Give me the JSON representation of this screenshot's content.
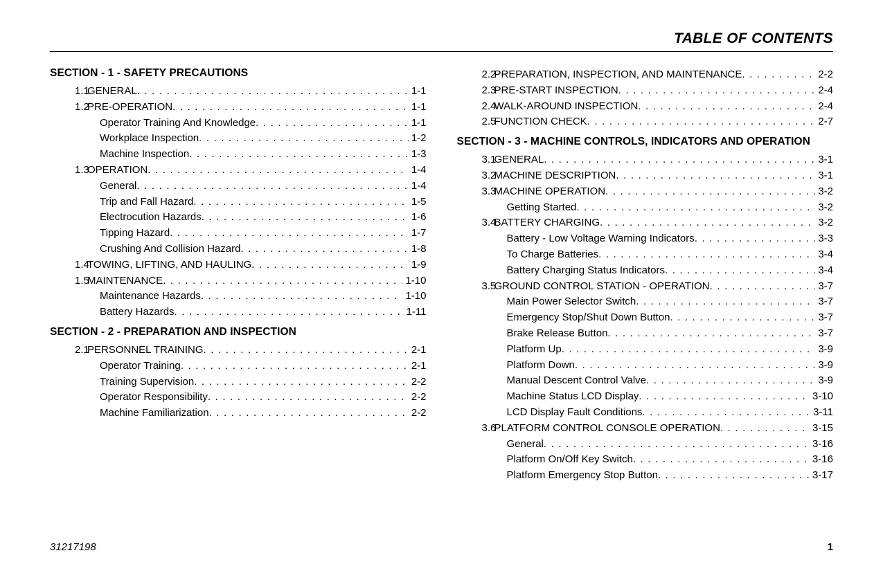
{
  "header": {
    "title": "TABLE OF CONTENTS"
  },
  "footer": {
    "doc_number": "31217198",
    "page_number": "1"
  },
  "left_column": [
    {
      "type": "section",
      "text": "SECTION - 1 - SAFETY PRECAUTIONS"
    },
    {
      "type": "entry",
      "num": "1.1",
      "label": "GENERAL",
      "page": "1-1"
    },
    {
      "type": "entry",
      "num": "1.2",
      "label": "PRE-OPERATION",
      "page": "1-1"
    },
    {
      "type": "sub",
      "label": "Operator Training And Knowledge",
      "page": "1-1"
    },
    {
      "type": "sub",
      "label": "Workplace Inspection",
      "page": "1-2"
    },
    {
      "type": "sub",
      "label": "Machine Inspection",
      "page": "1-3"
    },
    {
      "type": "entry",
      "num": "1.3",
      "label": "OPERATION",
      "page": "1-4"
    },
    {
      "type": "sub",
      "label": "General",
      "page": "1-4"
    },
    {
      "type": "sub",
      "label": "Trip and Fall Hazard",
      "page": "1-5"
    },
    {
      "type": "sub",
      "label": "Electrocution Hazards",
      "page": "1-6"
    },
    {
      "type": "sub",
      "label": "Tipping Hazard",
      "page": "1-7"
    },
    {
      "type": "sub",
      "label": "Crushing And Collision Hazard",
      "page": "1-8"
    },
    {
      "type": "entry",
      "num": "1.4",
      "label": "TOWING, LIFTING, AND HAULING",
      "page": "1-9"
    },
    {
      "type": "entry",
      "num": "1.5",
      "label": "MAINTENANCE",
      "page": "1-10"
    },
    {
      "type": "sub",
      "label": "Maintenance Hazards",
      "page": "1-10"
    },
    {
      "type": "sub",
      "label": "Battery Hazards",
      "page": "1-11"
    },
    {
      "type": "section",
      "text": "SECTION - 2 - PREPARATION AND INSPECTION"
    },
    {
      "type": "entry",
      "num": "2.1",
      "label": "PERSONNEL TRAINING",
      "page": "2-1"
    },
    {
      "type": "sub",
      "label": "Operator Training",
      "page": "2-1"
    },
    {
      "type": "sub",
      "label": "Training Supervision",
      "page": "2-2"
    },
    {
      "type": "sub",
      "label": "Operator Responsibility",
      "page": "2-2"
    },
    {
      "type": "sub",
      "label": "Machine Familiarization",
      "page": "2-2"
    }
  ],
  "right_column": [
    {
      "type": "entry",
      "num": "2.2",
      "label": "PREPARATION, INSPECTION, AND MAINTENANCE",
      "page": "2-2"
    },
    {
      "type": "entry",
      "num": "2.3",
      "label": "PRE-START INSPECTION",
      "page": "2-4"
    },
    {
      "type": "entry",
      "num": "2.4",
      "label": "WALK-AROUND INSPECTION",
      "page": "2-4"
    },
    {
      "type": "entry",
      "num": "2.5",
      "label": "FUNCTION CHECK",
      "page": "2-7"
    },
    {
      "type": "section",
      "text": "SECTION - 3 - MACHINE CONTROLS, INDICATORS AND OPERATION"
    },
    {
      "type": "entry",
      "num": "3.1",
      "label": "GENERAL",
      "page": "3-1"
    },
    {
      "type": "entry",
      "num": "3.2",
      "label": "MACHINE DESCRIPTION",
      "page": "3-1"
    },
    {
      "type": "entry",
      "num": "3.3",
      "label": "MACHINE OPERATION",
      "page": "3-2"
    },
    {
      "type": "sub",
      "label": "Getting Started",
      "page": "3-2"
    },
    {
      "type": "entry",
      "num": "3.4",
      "label": "BATTERY CHARGING",
      "page": "3-2"
    },
    {
      "type": "sub",
      "label": "Battery - Low Voltage Warning Indicators",
      "page": "3-3"
    },
    {
      "type": "sub",
      "label": "To Charge Batteries",
      "page": "3-4"
    },
    {
      "type": "sub",
      "label": "Battery Charging Status Indicators",
      "page": "3-4"
    },
    {
      "type": "entry",
      "num": "3.5",
      "label": "GROUND CONTROL STATION - OPERATION",
      "page": "3-7"
    },
    {
      "type": "sub",
      "label": "Main Power Selector Switch",
      "page": "3-7"
    },
    {
      "type": "sub",
      "label": "Emergency Stop/Shut Down Button",
      "page": "3-7"
    },
    {
      "type": "sub",
      "label": "Brake Release Button",
      "page": "3-7"
    },
    {
      "type": "sub",
      "label": "Platform Up",
      "page": "3-9"
    },
    {
      "type": "sub",
      "label": "Platform Down",
      "page": "3-9"
    },
    {
      "type": "sub",
      "label": "Manual Descent Control Valve",
      "page": "3-9"
    },
    {
      "type": "sub",
      "label": "Machine Status LCD Display",
      "page": "3-10"
    },
    {
      "type": "sub",
      "label": "LCD Display Fault Conditions",
      "page": "3-11"
    },
    {
      "type": "entry",
      "num": "3.6",
      "label": "PLATFORM CONTROL CONSOLE OPERATION",
      "page": "3-15"
    },
    {
      "type": "sub",
      "label": "General",
      "page": "3-16"
    },
    {
      "type": "sub",
      "label": "Platform On/Off Key Switch",
      "page": "3-16"
    },
    {
      "type": "sub",
      "label": "Platform Emergency Stop Button",
      "page": "3-17"
    }
  ]
}
